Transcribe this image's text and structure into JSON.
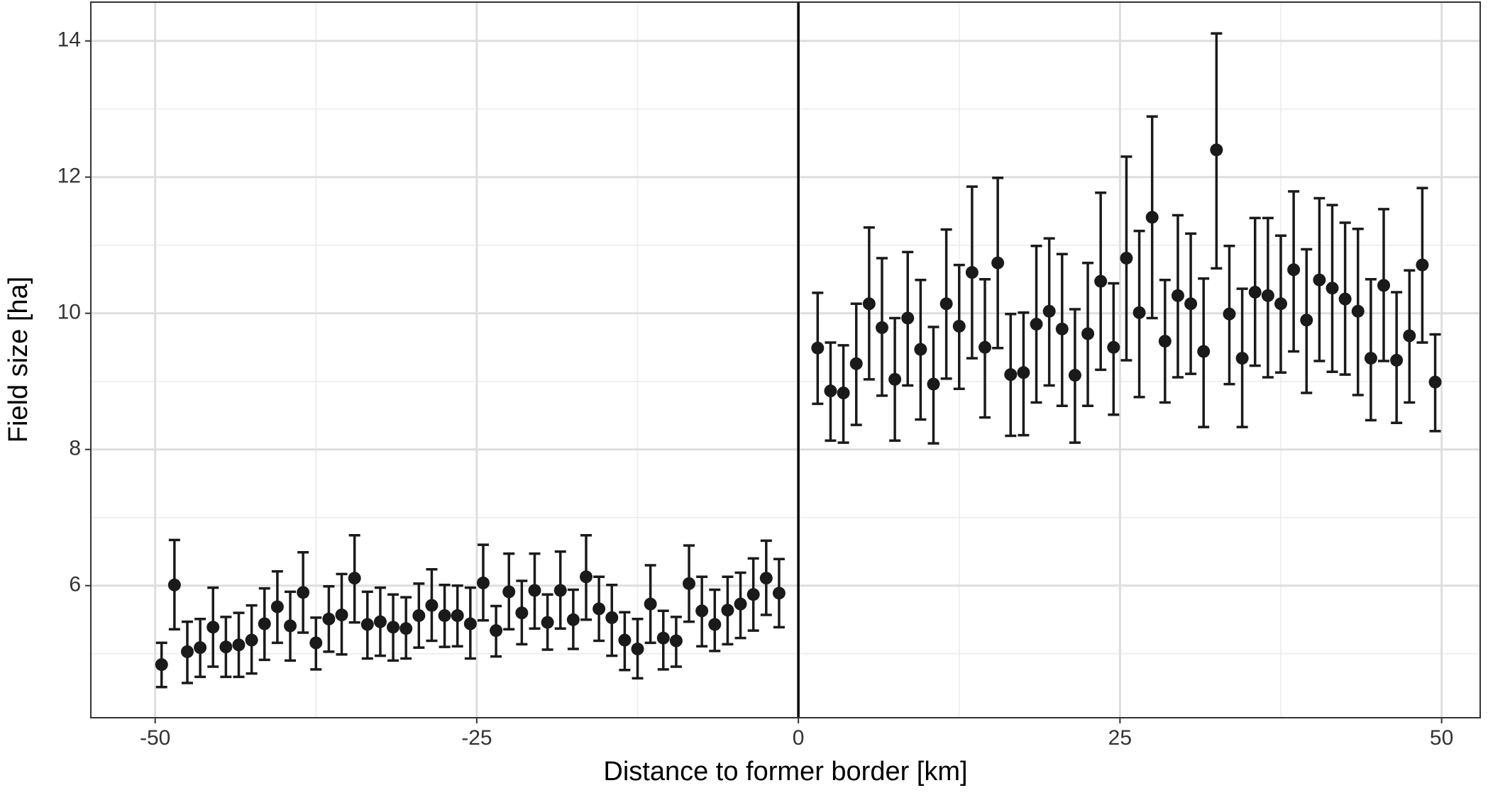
{
  "chart_data": {
    "type": "errorbar",
    "xlabel": "Distance to former border [km]",
    "ylabel": "Field size [ha]",
    "xlim": [
      -55,
      53
    ],
    "xticks": [
      -50,
      -25,
      0,
      25,
      50
    ],
    "xminor": [
      -37.5,
      -12.5,
      12.5,
      37.5
    ],
    "ylim": [
      4.06,
      14.57
    ],
    "yticks": [
      6,
      8,
      10,
      12,
      14
    ],
    "yminor": [
      5,
      7,
      9,
      11,
      13
    ],
    "grid": true,
    "vline": 0,
    "color": "#1a1a1a",
    "series": [
      {
        "x": [
          -49.5,
          -48.5,
          -47.5,
          -46.5,
          -45.5,
          -44.5,
          -43.5,
          -42.5,
          -41.5,
          -40.5,
          -39.5,
          -38.5,
          -37.5,
          -36.5,
          -35.5,
          -34.5,
          -33.5,
          -32.5,
          -31.5,
          -30.5,
          -29.5,
          -28.5,
          -27.5,
          -26.5,
          -25.5,
          -24.5,
          -23.5,
          -22.5,
          -21.5,
          -20.5,
          -19.5,
          -18.5,
          -17.5,
          -16.5,
          -15.5,
          -14.5,
          -13.5,
          -12.5,
          -11.5,
          -10.5,
          -9.5,
          -8.5,
          -7.5,
          -6.5,
          -5.5,
          -4.5,
          -3.5,
          -2.5,
          -1.5,
          1.5,
          2.5,
          3.5,
          4.5,
          5.5,
          6.5,
          7.5,
          8.5,
          9.5,
          10.5,
          11.5,
          12.5,
          13.5,
          14.5,
          15.5,
          16.5,
          17.5,
          18.5,
          19.5,
          20.5,
          21.5,
          22.5,
          23.5,
          24.5,
          25.5,
          26.5,
          27.5,
          28.5,
          29.5,
          30.5,
          31.5,
          32.5,
          33.5,
          34.5,
          35.5,
          36.5,
          37.5,
          38.5,
          39.5,
          40.5,
          41.5,
          42.5,
          43.5,
          44.5,
          45.5,
          46.5,
          47.5,
          48.5,
          49.5
        ],
        "values": [
          4.84,
          6.01,
          5.03,
          5.09,
          5.39,
          5.1,
          5.13,
          5.2,
          5.44,
          5.69,
          5.41,
          5.9,
          5.16,
          5.51,
          5.57,
          6.11,
          5.43,
          5.47,
          5.39,
          5.37,
          5.56,
          5.71,
          5.56,
          5.56,
          5.44,
          6.04,
          5.34,
          5.91,
          5.6,
          5.93,
          5.46,
          5.93,
          5.5,
          6.13,
          5.66,
          5.53,
          5.2,
          5.07,
          5.73,
          5.23,
          5.19,
          6.03,
          5.63,
          5.43,
          5.64,
          5.73,
          5.87,
          6.11,
          5.89,
          9.49,
          8.86,
          8.83,
          9.26,
          10.14,
          9.79,
          9.03,
          9.93,
          9.47,
          8.96,
          10.14,
          9.81,
          10.6,
          9.5,
          10.74,
          9.1,
          9.13,
          9.84,
          10.03,
          9.77,
          9.09,
          9.7,
          10.47,
          9.5,
          10.81,
          10.01,
          11.41,
          9.59,
          10.26,
          10.14,
          9.44,
          12.4,
          9.99,
          9.34,
          10.31,
          10.26,
          10.14,
          10.64,
          9.9,
          10.49,
          10.37,
          10.21,
          10.03,
          9.34,
          10.41,
          9.31,
          9.67,
          10.71,
          8.99
        ],
        "upper": [
          5.16,
          6.67,
          5.47,
          5.51,
          5.97,
          5.54,
          5.6,
          5.71,
          5.96,
          6.21,
          5.91,
          6.49,
          5.53,
          5.99,
          6.17,
          6.74,
          5.91,
          5.97,
          5.87,
          5.83,
          6.03,
          6.24,
          6.01,
          6.0,
          5.97,
          6.6,
          5.7,
          6.47,
          6.07,
          6.47,
          5.87,
          6.5,
          5.94,
          6.74,
          6.13,
          6.01,
          5.61,
          5.51,
          6.3,
          5.63,
          5.54,
          6.59,
          6.13,
          5.94,
          6.13,
          6.19,
          6.4,
          6.66,
          6.39,
          10.3,
          9.57,
          9.53,
          10.14,
          11.26,
          10.81,
          9.93,
          10.9,
          10.49,
          9.8,
          11.23,
          10.71,
          11.86,
          10.5,
          11.99,
          9.99,
          10.01,
          10.99,
          11.1,
          10.87,
          10.06,
          10.74,
          11.77,
          10.44,
          12.3,
          11.21,
          12.89,
          10.49,
          11.44,
          11.17,
          10.51,
          14.11,
          10.99,
          10.36,
          11.4,
          11.4,
          11.14,
          11.79,
          10.94,
          11.69,
          11.59,
          11.33,
          11.24,
          10.5,
          11.53,
          10.31,
          10.63,
          11.84,
          9.69
        ],
        "lower": [
          4.51,
          5.36,
          4.57,
          4.66,
          4.81,
          4.66,
          4.66,
          4.71,
          4.91,
          5.16,
          4.9,
          5.31,
          4.77,
          5.03,
          4.99,
          5.46,
          4.93,
          4.97,
          4.9,
          4.93,
          5.09,
          5.19,
          5.1,
          5.11,
          4.93,
          5.49,
          4.96,
          5.36,
          5.14,
          5.37,
          5.06,
          5.37,
          5.07,
          5.5,
          5.19,
          4.97,
          4.76,
          4.64,
          5.16,
          4.77,
          4.81,
          5.47,
          5.11,
          5.04,
          5.14,
          5.23,
          5.34,
          5.57,
          5.39,
          8.67,
          8.13,
          8.1,
          8.36,
          9.03,
          8.79,
          8.13,
          8.94,
          8.44,
          8.09,
          9.04,
          8.89,
          9.34,
          8.47,
          9.49,
          8.2,
          8.21,
          8.69,
          8.94,
          8.64,
          8.1,
          8.64,
          9.17,
          8.51,
          9.31,
          8.77,
          9.93,
          8.69,
          9.06,
          9.11,
          8.33,
          10.66,
          8.96,
          8.33,
          9.23,
          9.06,
          9.13,
          9.44,
          8.83,
          9.3,
          9.14,
          9.1,
          8.8,
          8.43,
          9.3,
          8.39,
          8.69,
          9.57,
          8.27
        ]
      }
    ]
  }
}
